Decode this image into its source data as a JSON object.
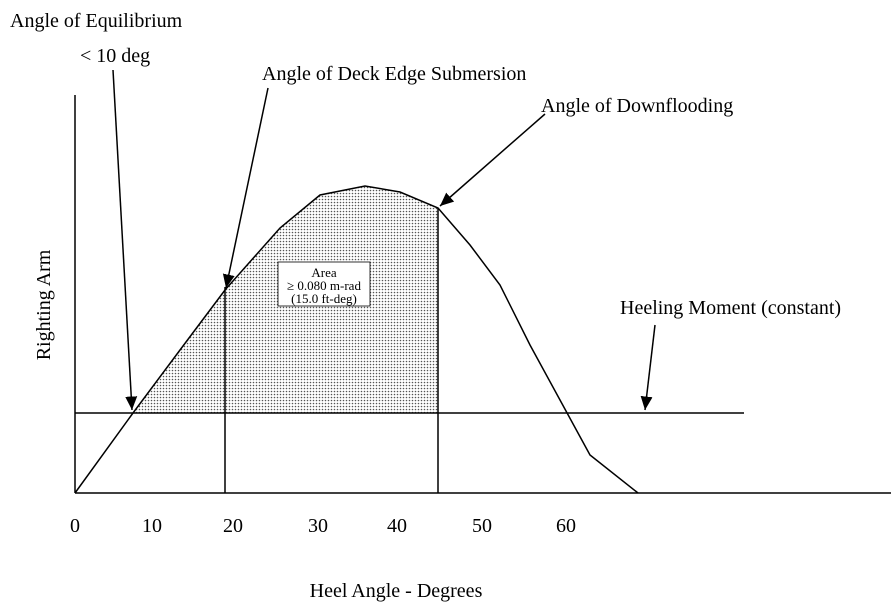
{
  "labels": {
    "equilibrium": "Angle of Equilibrium",
    "equilibrium_limit": "< 10 deg",
    "deck_edge": "Angle of Deck Edge Submersion",
    "downflooding": "Angle of Downflooding",
    "heeling": "Heeling Moment (constant)",
    "y_axis": "Righting Arm",
    "x_axis": "Heel Angle - Degrees"
  },
  "area_box": [
    "Area",
    "≥ 0.080 m-rad",
    "(15.0 ft-deg)"
  ],
  "x_ticks": [
    "0",
    "10",
    "20",
    "30",
    "40",
    "50",
    "60"
  ]
}
